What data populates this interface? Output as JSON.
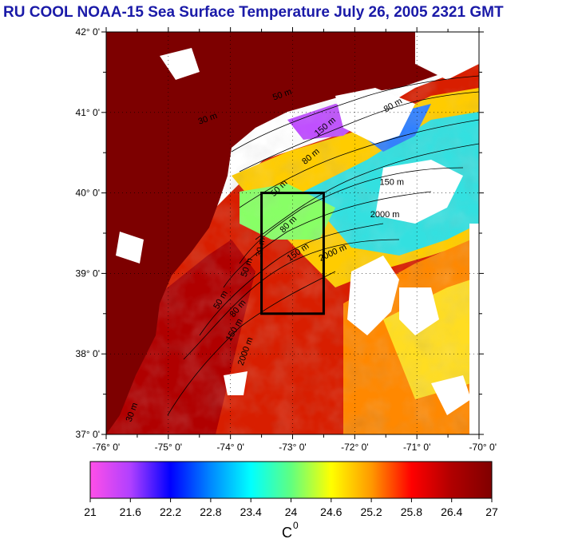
{
  "title": "RU COOL  NOAA-15 Sea Surface Temperature July 26, 2005 2321 GMT",
  "map": {
    "lon_range": [
      -76,
      -70
    ],
    "lat_range": [
      37,
      42
    ],
    "lat_ticks": [
      {
        "value": 42,
        "label": "42° 0'"
      },
      {
        "value": 41,
        "label": "41° 0'"
      },
      {
        "value": 40,
        "label": "40° 0'"
      },
      {
        "value": 39,
        "label": "39° 0'"
      },
      {
        "value": 38,
        "label": "38° 0'"
      },
      {
        "value": 37,
        "label": "37° 0'"
      }
    ],
    "lon_ticks": [
      {
        "value": -76,
        "label": "-76° 0'"
      },
      {
        "value": -75,
        "label": "-75° 0'"
      },
      {
        "value": -74,
        "label": "-74° 0'"
      },
      {
        "value": -73,
        "label": "-73° 0'"
      },
      {
        "value": -72,
        "label": "-72° 0'"
      },
      {
        "value": -71,
        "label": "-71° 0'"
      },
      {
        "value": -70,
        "label": "-70° 0'"
      }
    ],
    "study_box": {
      "lon": [
        -73.5,
        -72.5
      ],
      "lat": [
        38.5,
        40.0
      ]
    },
    "contour_labels": [
      {
        "text": "150 m",
        "lon": -71.6,
        "lat": 40.1,
        "rotate": 0
      },
      {
        "text": "2000 m",
        "lon": -71.75,
        "lat": 39.7,
        "rotate": 0
      },
      {
        "text": "2000 m",
        "lon": -72.55,
        "lat": 39.15,
        "rotate": -25
      },
      {
        "text": "150 m",
        "lon": -73.05,
        "lat": 39.15,
        "rotate": -35
      },
      {
        "text": "80 m",
        "lon": -73.15,
        "lat": 39.5,
        "rotate": -45
      },
      {
        "text": "30 m",
        "lon": -73.5,
        "lat": 39.2,
        "rotate": -80
      },
      {
        "text": "50 m",
        "lon": -73.75,
        "lat": 38.95,
        "rotate": -70
      },
      {
        "text": "50 m",
        "lon": -74.2,
        "lat": 38.55,
        "rotate": -60
      },
      {
        "text": "80 m",
        "lon": -73.95,
        "lat": 38.45,
        "rotate": -50
      },
      {
        "text": "150 m",
        "lon": -74.0,
        "lat": 38.15,
        "rotate": -60
      },
      {
        "text": "2000 m",
        "lon": -73.8,
        "lat": 37.85,
        "rotate": -70
      },
      {
        "text": "50 m",
        "lon": -73.3,
        "lat": 39.95,
        "rotate": -45
      },
      {
        "text": "80 m",
        "lon": -72.8,
        "lat": 40.35,
        "rotate": -40
      },
      {
        "text": "150 m",
        "lon": -72.6,
        "lat": 40.7,
        "rotate": -40
      },
      {
        "text": "30 m",
        "lon": -74.5,
        "lat": 40.85,
        "rotate": -20
      },
      {
        "text": "50 m",
        "lon": -73.3,
        "lat": 41.15,
        "rotate": -20
      },
      {
        "text": "80 m",
        "lon": -71.5,
        "lat": 41.0,
        "rotate": -30
      },
      {
        "text": "30 m",
        "lon": -75.6,
        "lat": 37.15,
        "rotate": -70
      }
    ]
  },
  "colorbar": {
    "ticks": [
      "21",
      "21.6",
      "22.2",
      "22.8",
      "23.4",
      "24",
      "24.6",
      "25.2",
      "25.8",
      "26.4",
      "27"
    ],
    "unit": "C",
    "unit_sup": "0",
    "colors": [
      "#ff4fe8",
      "#b040ff",
      "#0000ff",
      "#0088ff",
      "#00ffff",
      "#60ff80",
      "#ffff00",
      "#ff9900",
      "#ff0000",
      "#b00000",
      "#800000"
    ]
  },
  "palette": {
    "land": "#7d0000",
    "cloud": "#ffffff",
    "frame": "#000000"
  }
}
